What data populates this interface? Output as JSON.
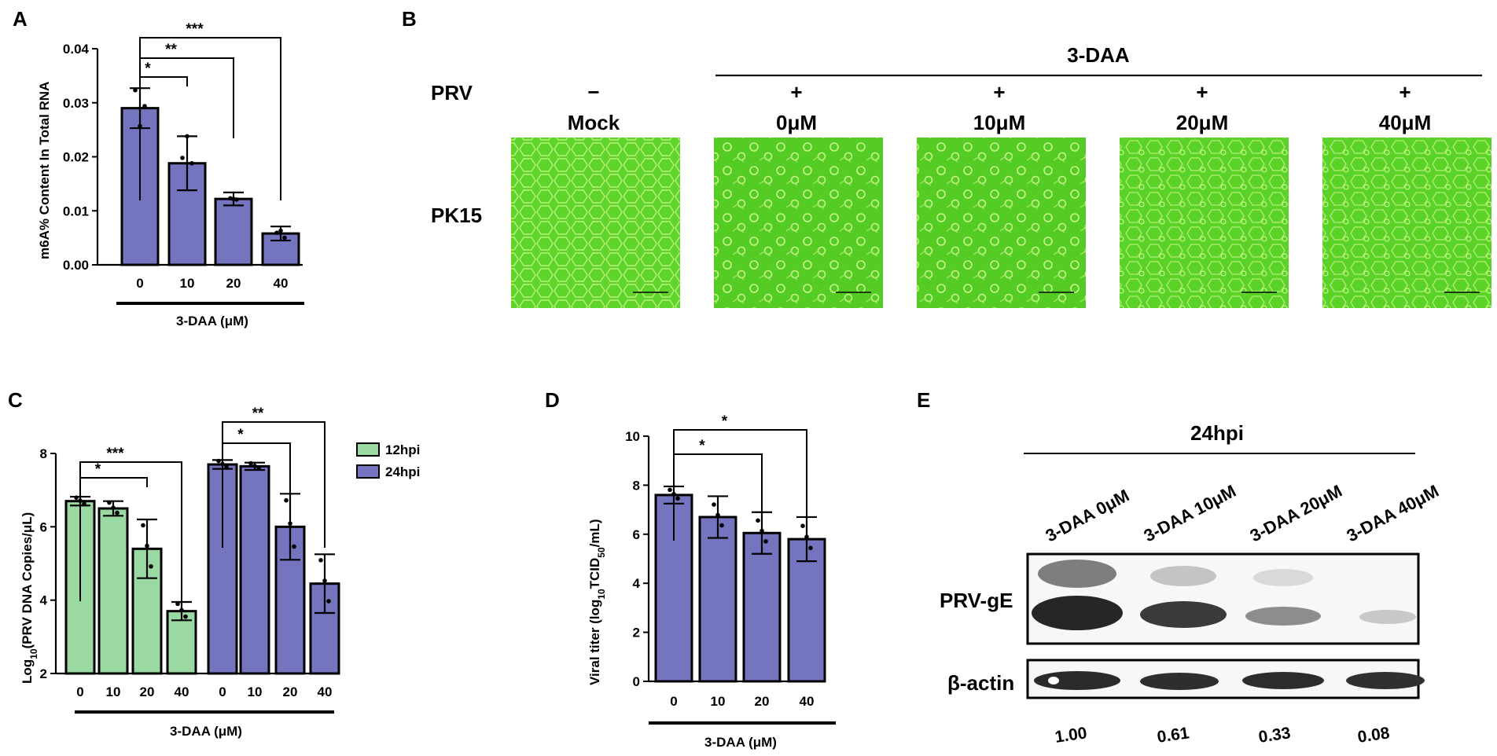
{
  "colors": {
    "purple": "#7474bf",
    "green": "#9ad9a2",
    "cell_bg": "#5fd42a",
    "cell_edge": "#b8f07a",
    "blot_bg": "#f7f7f7",
    "band_dark": "#262626"
  },
  "panelA": {
    "letter": "A",
    "ylabel": "m6A% Content In Total RNA",
    "xgroup_label": "3-DAA (μM)",
    "sig": [
      "*",
      "**",
      "***"
    ]
  },
  "panelB": {
    "letter": "B",
    "group_label": "3-DAA",
    "row_prv": "PRV",
    "row_cells": "PK15",
    "columns": [
      {
        "sign": "−",
        "label": "Mock"
      },
      {
        "sign": "+",
        "label": "0μM"
      },
      {
        "sign": "+",
        "label": "10μM"
      },
      {
        "sign": "+",
        "label": "20μM"
      },
      {
        "sign": "+",
        "label": "40μM"
      }
    ]
  },
  "panelC": {
    "letter": "C",
    "ylabel_main": "Log",
    "ylabel_sub": "10",
    "ylabel_rest": "(PRV DNA Copies/μL)",
    "xgroup_label": "3-DAA (μM)",
    "sig_12": [
      "*",
      "***"
    ],
    "sig_24": [
      "*",
      "**"
    ]
  },
  "panelD": {
    "letter": "D",
    "ylabel_main": "Viral titer (log",
    "ylabel_sub": "10",
    "ylabel_rest": "TCID",
    "ylabel_sub2": "50",
    "ylabel_end": "/mL)",
    "xgroup_label": "3-DAA (μM)",
    "sig": [
      "*",
      "*"
    ]
  },
  "panelE": {
    "letter": "E",
    "time_label": "24hpi",
    "lanes": [
      "3-DAA 0μM",
      "3-DAA 10μM",
      "3-DAA 20μM",
      "3-DAA 40μM"
    ],
    "row_labels": [
      "PRV-gE",
      "β-actin"
    ],
    "ratios": [
      "1.00",
      "0.61",
      "0.33",
      "0.08"
    ]
  },
  "chart_data": [
    {
      "type": "bar",
      "panel": "A",
      "categories": [
        "0",
        "10",
        "20",
        "40"
      ],
      "values": [
        0.029,
        0.0188,
        0.0122,
        0.0058
      ],
      "errors": [
        0.0037,
        0.005,
        0.0012,
        0.0013
      ],
      "ylabel": "m6A% Content In Total RNA",
      "xlabel": "3-DAA (μM)",
      "ylim": [
        0,
        0.04
      ],
      "yticks": [
        "0.00",
        "0.01",
        "0.02",
        "0.03",
        "0.04"
      ]
    },
    {
      "type": "bar",
      "panel": "C",
      "categories": [
        "0",
        "10",
        "20",
        "40"
      ],
      "series": [
        {
          "name": "12hpi",
          "values": [
            6.7,
            6.5,
            5.4,
            3.7
          ],
          "errors": [
            0.12,
            0.2,
            0.8,
            0.25
          ]
        },
        {
          "name": "24hpi",
          "values": [
            7.7,
            7.65,
            6.0,
            4.45
          ],
          "errors": [
            0.12,
            0.1,
            0.9,
            0.8
          ]
        }
      ],
      "ylabel": "Log10(PRV DNA Copies/μL)",
      "xlabel": "3-DAA (μM)",
      "ylim": [
        2,
        8
      ],
      "yticks": [
        "2",
        "4",
        "6",
        "8"
      ]
    },
    {
      "type": "bar",
      "panel": "D",
      "categories": [
        "0",
        "10",
        "20",
        "40"
      ],
      "values": [
        7.6,
        6.7,
        6.05,
        5.8
      ],
      "errors": [
        0.35,
        0.85,
        0.85,
        0.9
      ],
      "ylabel": "Viral titer (log10TCID50/mL)",
      "xlabel": "3-DAA (μM)",
      "ylim": [
        0,
        10
      ],
      "yticks": [
        "0",
        "2",
        "4",
        "6",
        "8",
        "10"
      ]
    }
  ]
}
